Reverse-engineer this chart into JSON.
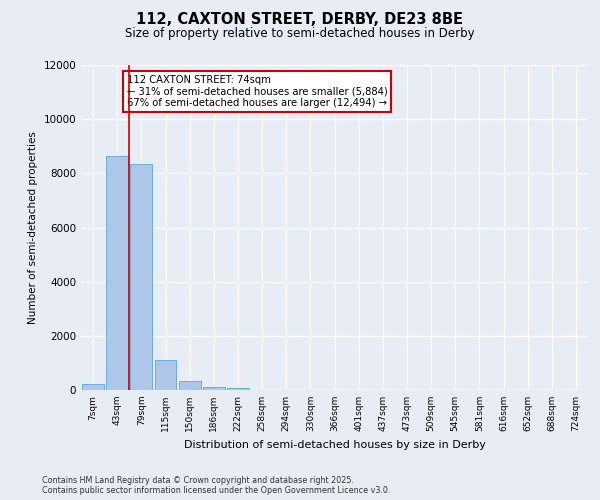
{
  "title_line1": "112, CAXTON STREET, DERBY, DE23 8BE",
  "title_line2": "Size of property relative to semi-detached houses in Derby",
  "xlabel": "Distribution of semi-detached houses by size in Derby",
  "ylabel": "Number of semi-detached properties",
  "categories": [
    "7sqm",
    "43sqm",
    "79sqm",
    "115sqm",
    "150sqm",
    "186sqm",
    "222sqm",
    "258sqm",
    "294sqm",
    "330sqm",
    "366sqm",
    "401sqm",
    "437sqm",
    "473sqm",
    "509sqm",
    "545sqm",
    "581sqm",
    "616sqm",
    "652sqm",
    "688sqm",
    "724sqm"
  ],
  "values": [
    220,
    8650,
    8350,
    1100,
    330,
    110,
    60,
    0,
    0,
    0,
    0,
    0,
    0,
    0,
    0,
    0,
    0,
    0,
    0,
    0,
    0
  ],
  "bar_color": "#aec6e8",
  "bar_edge_color": "#6baed6",
  "vline_color": "#cc0000",
  "annotation_text": "112 CAXTON STREET: 74sqm\n← 31% of semi-detached houses are smaller (5,884)\n67% of semi-detached houses are larger (12,494) →",
  "annotation_box_color": "#cc0000",
  "ylim": [
    0,
    12000
  ],
  "yticks": [
    0,
    2000,
    4000,
    6000,
    8000,
    10000,
    12000
  ],
  "bg_color": "#e8edf5",
  "plot_bg_color": "#e8edf5",
  "grid_color": "#ffffff",
  "footer_line1": "Contains HM Land Registry data © Crown copyright and database right 2025.",
  "footer_line2": "Contains public sector information licensed under the Open Government Licence v3.0."
}
